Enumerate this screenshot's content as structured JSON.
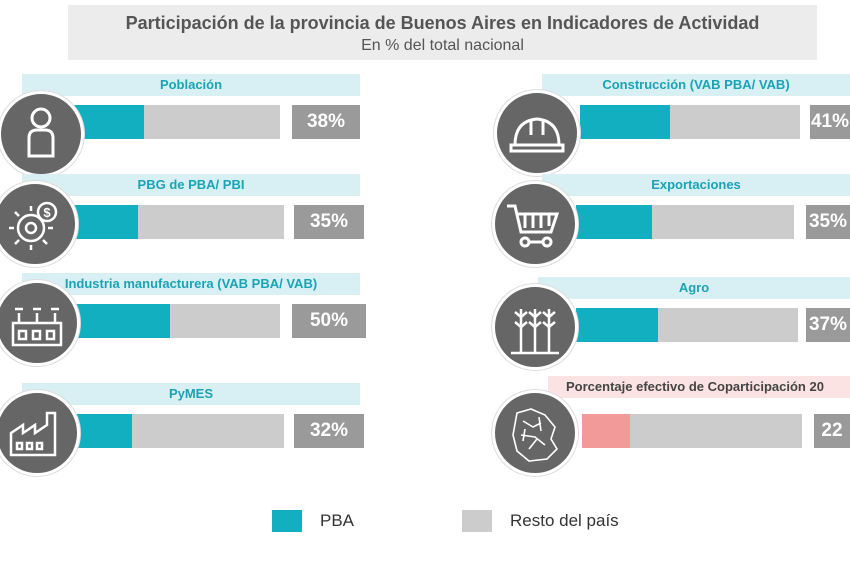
{
  "header": {
    "title": "Participación de la provincia de Buenos Aires en Indicadores de Actividad",
    "subtitle": "En % del total nacional"
  },
  "colors": {
    "pba": "#12afc0",
    "resto": "#cccccc",
    "coparticipacion": "#f29a9a",
    "pct_box": "#9a9a9a"
  },
  "chart_data": {
    "type": "bar",
    "title": "Participación de la provincia de Buenos Aires en Indicadores de Actividad",
    "subtitle": "En % del total nacional",
    "categories": [
      "Población",
      "PBG de PBA/ PBI",
      "Industria manufacturera (VAB PBA/ VAB)",
      "PyMES",
      "Construcción (VAB PBA/ VAB)",
      "Exportaciones",
      "Agro",
      "Porcentaje efectivo de Coparticipación 20"
    ],
    "series": [
      {
        "name": "PBA",
        "values": [
          38,
          35,
          50,
          32,
          41,
          35,
          37,
          22
        ]
      },
      {
        "name": "Resto del país",
        "values": [
          62,
          65,
          50,
          68,
          59,
          65,
          63,
          78
        ]
      }
    ],
    "ylim": [
      0,
      100
    ],
    "legend": "bottom"
  },
  "items": [
    {
      "label": "Población",
      "pct_text": "38%",
      "icon": "person-icon"
    },
    {
      "label": "PBG de PBA/ PBI",
      "pct_text": "35%",
      "icon": "gear-dollar-icon"
    },
    {
      "label": "Industria manufacturera (VAB PBA/ VAB)",
      "pct_text": "50%",
      "icon": "industry-icon"
    },
    {
      "label": "PyMES",
      "pct_text": "32%",
      "icon": "factory-icon"
    },
    {
      "label": "Construcción (VAB PBA/ VAB)",
      "pct_text": "41%",
      "icon": "hard-hat-icon"
    },
    {
      "label": "Exportaciones",
      "pct_text": "35%",
      "icon": "shopping-cart-icon"
    },
    {
      "label": "Agro",
      "pct_text": "37%",
      "icon": "wheat-icon"
    },
    {
      "label": "Porcentaje efectivo de Coparticipación 20",
      "pct_text": "22",
      "icon": "map-icon"
    }
  ],
  "legend": {
    "pba": "PBA",
    "resto": "Resto del país"
  }
}
